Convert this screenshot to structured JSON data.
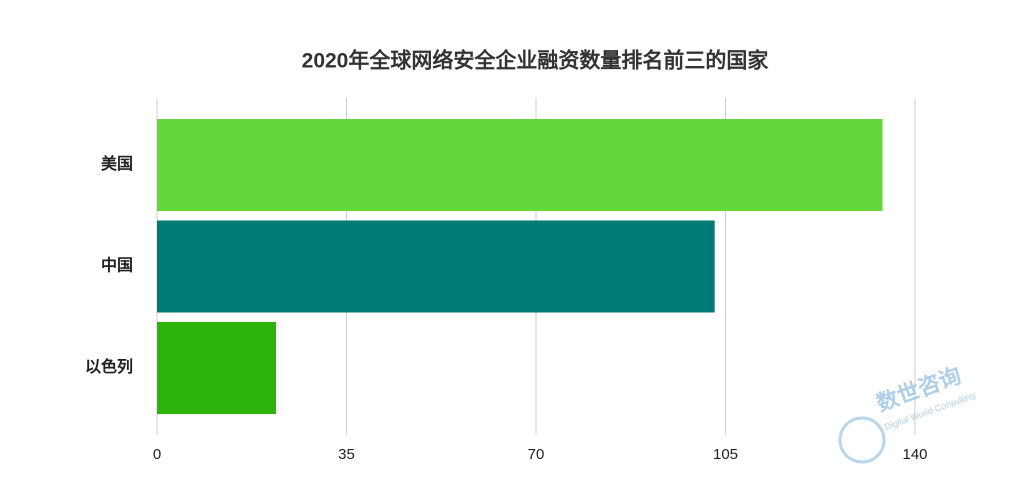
{
  "chart_data": {
    "type": "bar",
    "orientation": "horizontal",
    "title": "2020年全球网络安全企业融资数量排名前三的国家",
    "categories": [
      "美国",
      "中国",
      "以色列"
    ],
    "values": [
      134,
      103,
      22
    ],
    "colors": [
      "#62d83a",
      "#007a72",
      "#2db40c"
    ],
    "xlim": [
      0,
      140
    ],
    "xticks": [
      0,
      35,
      70,
      105,
      140
    ],
    "grid": true,
    "watermark": {
      "name": "数世咨询",
      "subtitle": "Digital World Consulting"
    }
  }
}
